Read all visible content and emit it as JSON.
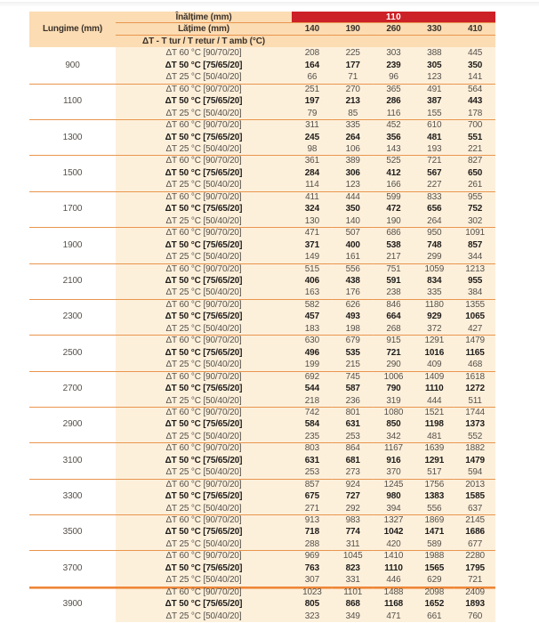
{
  "table": {
    "header": {
      "lungime_label": "Lungime (mm)",
      "inaltime_label": "Înălțime (mm)",
      "inaltime_value": "110",
      "latime_label": "Lățime (mm)",
      "latime_values": [
        "140",
        "190",
        "260",
        "330",
        "410"
      ],
      "dt_header": "ΔT - T tur / T retur / T amb (°C)"
    },
    "row_labels": [
      "ΔT 60 °C [90/70/20]",
      "ΔT 50 °C [75/65/20]",
      "ΔT 25 °C [50/40/20]"
    ],
    "groups": [
      {
        "length": "900",
        "dt60": [
          208,
          225,
          303,
          388,
          445
        ],
        "dt50": [
          164,
          177,
          239,
          305,
          350
        ],
        "dt25": [
          66,
          71,
          96,
          123,
          141
        ]
      },
      {
        "length": "1100",
        "dt60": [
          251,
          270,
          365,
          491,
          564
        ],
        "dt50": [
          197,
          213,
          286,
          387,
          443
        ],
        "dt25": [
          79,
          85,
          116,
          155,
          178
        ]
      },
      {
        "length": "1300",
        "dt60": [
          311,
          335,
          452,
          610,
          700
        ],
        "dt50": [
          245,
          264,
          356,
          481,
          551
        ],
        "dt25": [
          98,
          106,
          143,
          193,
          221
        ]
      },
      {
        "length": "1500",
        "dt60": [
          361,
          389,
          525,
          721,
          827
        ],
        "dt50": [
          284,
          306,
          412,
          567,
          650
        ],
        "dt25": [
          114,
          123,
          166,
          227,
          261
        ]
      },
      {
        "length": "1700",
        "dt60": [
          411,
          444,
          599,
          833,
          955
        ],
        "dt50": [
          324,
          350,
          472,
          656,
          752
        ],
        "dt25": [
          130,
          140,
          190,
          264,
          302
        ]
      },
      {
        "length": "1900",
        "dt60": [
          471,
          507,
          686,
          950,
          1091
        ],
        "dt50": [
          371,
          400,
          538,
          748,
          857
        ],
        "dt25": [
          149,
          161,
          217,
          299,
          344
        ]
      },
      {
        "length": "2100",
        "dt60": [
          515,
          556,
          751,
          1059,
          1213
        ],
        "dt50": [
          406,
          438,
          591,
          834,
          955
        ],
        "dt25": [
          163,
          176,
          238,
          335,
          384
        ]
      },
      {
        "length": "2300",
        "dt60": [
          582,
          626,
          846,
          1180,
          1355
        ],
        "dt50": [
          457,
          493,
          664,
          929,
          1065
        ],
        "dt25": [
          183,
          198,
          268,
          372,
          427
        ]
      },
      {
        "length": "2500",
        "dt60": [
          630,
          679,
          915,
          1291,
          1479
        ],
        "dt50": [
          496,
          535,
          721,
          1016,
          1165
        ],
        "dt25": [
          199,
          215,
          290,
          409,
          468
        ]
      },
      {
        "length": "2700",
        "dt60": [
          692,
          745,
          1006,
          1409,
          1618
        ],
        "dt50": [
          544,
          587,
          790,
          1110,
          1272
        ],
        "dt25": [
          218,
          236,
          319,
          444,
          511
        ]
      },
      {
        "length": "2900",
        "dt60": [
          742,
          801,
          1080,
          1521,
          1744
        ],
        "dt50": [
          584,
          631,
          850,
          1198,
          1373
        ],
        "dt25": [
          235,
          253,
          342,
          481,
          552
        ]
      },
      {
        "length": "3100",
        "dt60": [
          803,
          864,
          1167,
          1639,
          1882
        ],
        "dt50": [
          631,
          681,
          916,
          1291,
          1479
        ],
        "dt25": [
          253,
          273,
          370,
          517,
          594
        ]
      },
      {
        "length": "3300",
        "dt60": [
          857,
          924,
          1245,
          1756,
          2013
        ],
        "dt50": [
          675,
          727,
          980,
          1383,
          1585
        ],
        "dt25": [
          271,
          292,
          394,
          556,
          637
        ]
      },
      {
        "length": "3500",
        "dt60": [
          913,
          983,
          1327,
          1869,
          2145
        ],
        "dt50": [
          718,
          774,
          1042,
          1471,
          1686
        ],
        "dt25": [
          288,
          311,
          420,
          589,
          677
        ]
      },
      {
        "length": "3700",
        "dt60": [
          969,
          1045,
          1410,
          1988,
          2280
        ],
        "dt50": [
          763,
          823,
          1110,
          1565,
          1795
        ],
        "dt25": [
          307,
          331,
          446,
          629,
          721
        ]
      },
      {
        "length": "3900",
        "dt60": [
          1023,
          1101,
          1488,
          2098,
          2409
        ],
        "dt50": [
          805,
          868,
          1168,
          1652,
          1893
        ],
        "dt25": [
          323,
          349,
          471,
          661,
          760
        ]
      }
    ],
    "colors": {
      "red_band": "#cc2127",
      "header_peach": "#fbdcb3",
      "body_cream": "#fdf0db",
      "separator_orange": "#e9954e",
      "separator_thick_orange": "#ee8637"
    }
  }
}
